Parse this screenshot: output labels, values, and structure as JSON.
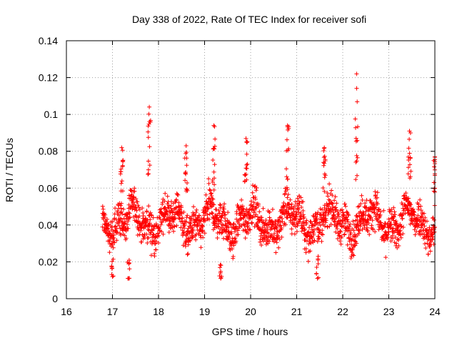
{
  "chart_data": {
    "type": "scatter",
    "title": "Day 338 of 2022, Rate Of TEC Index for receiver sofi",
    "xlabel": "GPS time / hours",
    "ylabel": "ROTI / TECUs",
    "xlim": [
      16,
      24
    ],
    "ylim": [
      0,
      0.14
    ],
    "x_ticks": [
      16,
      17,
      18,
      19,
      20,
      21,
      22,
      23,
      24
    ],
    "x_tick_labels": [
      "16",
      "17",
      "18",
      "19",
      "20",
      "21",
      "22",
      "23",
      "24"
    ],
    "y_ticks": [
      0,
      0.02,
      0.04,
      0.06,
      0.08,
      0.1,
      0.12,
      0.14
    ],
    "y_tick_labels": [
      "0",
      "0.02",
      "0.04",
      "0.06",
      "0.08",
      "0.1",
      "0.12",
      "0.14"
    ],
    "grid": true,
    "marker": "+",
    "marker_color": "#ff0000",
    "series": [
      {
        "name": "ROTI",
        "x_range": [
          16.78,
          24.0
        ],
        "typical_range": [
          0.02,
          0.065
        ],
        "center": 0.042,
        "peaks": [
          {
            "x": 17.2,
            "y": 0.082
          },
          {
            "x": 17.8,
            "y": 0.104
          },
          {
            "x": 18.6,
            "y": 0.083
          },
          {
            "x": 19.2,
            "y": 0.094
          },
          {
            "x": 19.9,
            "y": 0.087
          },
          {
            "x": 20.8,
            "y": 0.094
          },
          {
            "x": 21.6,
            "y": 0.082
          },
          {
            "x": 22.3,
            "y": 0.122
          },
          {
            "x": 23.45,
            "y": 0.091
          },
          {
            "x": 24.0,
            "y": 0.077
          }
        ],
        "troughs": [
          {
            "x": 17.0,
            "y": 0.012
          },
          {
            "x": 17.35,
            "y": 0.011
          },
          {
            "x": 19.35,
            "y": 0.011
          },
          {
            "x": 21.45,
            "y": 0.011
          }
        ]
      }
    ]
  }
}
